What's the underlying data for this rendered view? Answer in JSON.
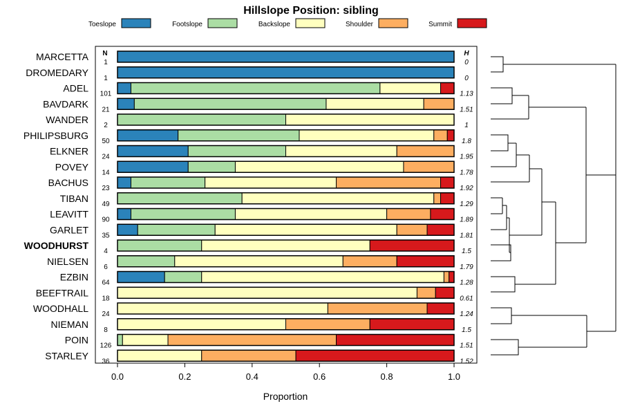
{
  "chart_data": {
    "type": "bar",
    "orientation": "horizontal-stacked",
    "title": "Hillslope Position: sibling",
    "xlabel": "Proportion",
    "xlim": [
      0,
      1
    ],
    "xticks": [
      "0.0",
      "0.2",
      "0.4",
      "0.6",
      "0.8",
      "1.0"
    ],
    "col_header_n": "N",
    "col_header_h": "H",
    "legend": [
      {
        "name": "Toeslope",
        "color": "#2b83ba"
      },
      {
        "name": "Footslope",
        "color": "#abdda4"
      },
      {
        "name": "Backslope",
        "color": "#ffffbf"
      },
      {
        "name": "Shoulder",
        "color": "#fdae61"
      },
      {
        "name": "Summit",
        "color": "#d7191c"
      }
    ],
    "categories": [
      {
        "label": "MARCETTA",
        "n": "1",
        "h": "0",
        "bold": false,
        "values": [
          1.0,
          0,
          0,
          0,
          0
        ]
      },
      {
        "label": "DROMEDARY",
        "n": "1",
        "h": "0",
        "bold": false,
        "values": [
          1.0,
          0,
          0,
          0,
          0
        ]
      },
      {
        "label": "ADEL",
        "n": "101",
        "h": "1.13",
        "bold": false,
        "values": [
          0.04,
          0.74,
          0.18,
          0.0,
          0.04
        ]
      },
      {
        "label": "BAVDARK",
        "n": "21",
        "h": "1.51",
        "bold": false,
        "values": [
          0.05,
          0.57,
          0.29,
          0.09,
          0.0
        ]
      },
      {
        "label": "WANDER",
        "n": "2",
        "h": "1",
        "bold": false,
        "values": [
          0.0,
          0.5,
          0.5,
          0.0,
          0.0
        ]
      },
      {
        "label": "PHILIPSBURG",
        "n": "50",
        "h": "1.8",
        "bold": false,
        "values": [
          0.18,
          0.36,
          0.4,
          0.04,
          0.02
        ]
      },
      {
        "label": "ELKNER",
        "n": "24",
        "h": "1.95",
        "bold": false,
        "values": [
          0.21,
          0.29,
          0.33,
          0.17,
          0.0
        ]
      },
      {
        "label": "POVEY",
        "n": "14",
        "h": "1.78",
        "bold": false,
        "values": [
          0.21,
          0.14,
          0.5,
          0.15,
          0.0
        ]
      },
      {
        "label": "BACHUS",
        "n": "23",
        "h": "1.92",
        "bold": false,
        "values": [
          0.04,
          0.22,
          0.39,
          0.31,
          0.04
        ]
      },
      {
        "label": "TIBAN",
        "n": "49",
        "h": "1.29",
        "bold": false,
        "values": [
          0.0,
          0.37,
          0.57,
          0.02,
          0.04
        ]
      },
      {
        "label": "LEAVITT",
        "n": "90",
        "h": "1.89",
        "bold": false,
        "values": [
          0.04,
          0.31,
          0.45,
          0.13,
          0.07
        ]
      },
      {
        "label": "GARLET",
        "n": "35",
        "h": "1.81",
        "bold": false,
        "values": [
          0.06,
          0.23,
          0.54,
          0.09,
          0.08
        ]
      },
      {
        "label": "WOODHURST",
        "n": "4",
        "h": "1.5",
        "bold": true,
        "values": [
          0.0,
          0.25,
          0.5,
          0.0,
          0.25
        ]
      },
      {
        "label": "NIELSEN",
        "n": "6",
        "h": "1.79",
        "bold": false,
        "values": [
          0.0,
          0.17,
          0.5,
          0.16,
          0.17
        ]
      },
      {
        "label": "EZBIN",
        "n": "64",
        "h": "1.28",
        "bold": false,
        "values": [
          0.14,
          0.11,
          0.72,
          0.015,
          0.015
        ]
      },
      {
        "label": "BEEFTRAIL",
        "n": "18",
        "h": "0.61",
        "bold": false,
        "values": [
          0.0,
          0.0,
          0.89,
          0.055,
          0.055
        ]
      },
      {
        "label": "WOODHALL",
        "n": "24",
        "h": "1.24",
        "bold": false,
        "values": [
          0.0,
          0.0,
          0.625,
          0.295,
          0.08
        ]
      },
      {
        "label": "NIEMAN",
        "n": "8",
        "h": "1.5",
        "bold": false,
        "values": [
          0.0,
          0.0,
          0.5,
          0.25,
          0.25
        ]
      },
      {
        "label": "POIN",
        "n": "126",
        "h": "1.51",
        "bold": false,
        "values": [
          0.0,
          0.015,
          0.135,
          0.5,
          0.35
        ]
      },
      {
        "label": "STARLEY",
        "n": "36",
        "h": "1.52",
        "bold": false,
        "values": [
          0.0,
          0.0,
          0.25,
          0.28,
          0.47
        ]
      }
    ]
  }
}
